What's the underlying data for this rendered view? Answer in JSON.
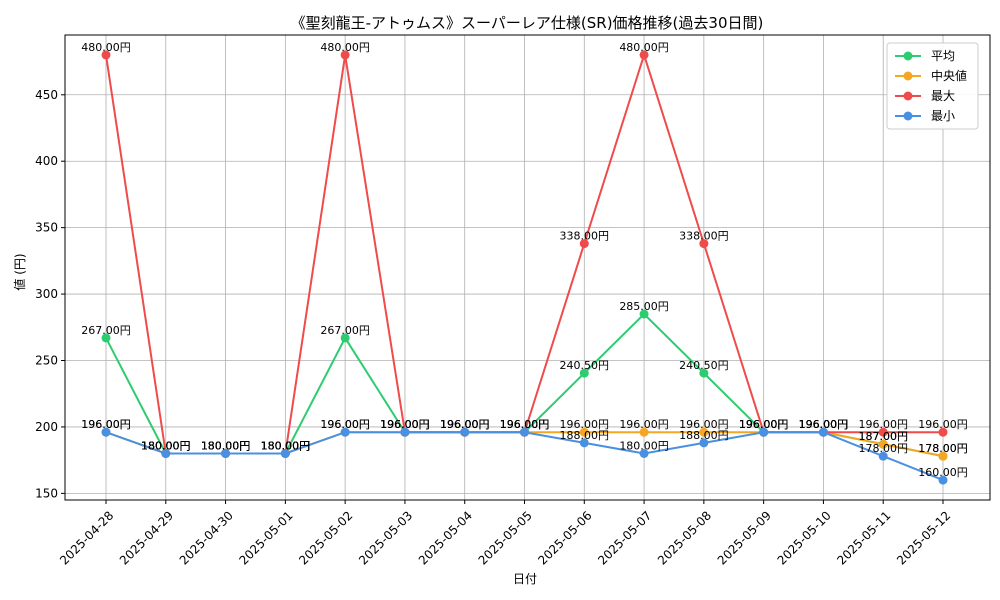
{
  "chart_data": {
    "type": "line",
    "title": "《聖刻龍王-アトゥムス》スーパーレア仕様(SR)価格推移(過去30日間)",
    "xlabel": "日付",
    "ylabel": "値 (円)",
    "ylim": [
      145,
      495
    ],
    "yticks": [
      150,
      200,
      250,
      300,
      350,
      400,
      450
    ],
    "grid": true,
    "legend_position": "top-right",
    "categories": [
      "2025-04-28",
      "2025-04-29",
      "2025-04-30",
      "2025-05-01",
      "2025-05-02",
      "2025-05-03",
      "2025-05-04",
      "2025-05-05",
      "2025-05-06",
      "2025-05-07",
      "2025-05-08",
      "2025-05-09",
      "2025-05-10",
      "2025-05-11",
      "2025-05-12"
    ],
    "series": [
      {
        "name": "平均",
        "color": "#2ecc71",
        "values": [
          267,
          180,
          180,
          180,
          267,
          196,
          196,
          196,
          240.5,
          285,
          240.5,
          196,
          196,
          187,
          178
        ]
      },
      {
        "name": "中央値",
        "color": "#f5a623",
        "values": [
          196,
          180,
          180,
          180,
          196,
          196,
          196,
          196,
          196,
          196,
          196,
          196,
          196,
          187,
          178
        ]
      },
      {
        "name": "最大",
        "color": "#ef4b4b",
        "values": [
          480,
          180,
          180,
          180,
          480,
          196,
          196,
          196,
          338,
          480,
          338,
          196,
          196,
          196,
          196
        ]
      },
      {
        "name": "最小",
        "color": "#4a90e2",
        "values": [
          196,
          180,
          180,
          180,
          196,
          196,
          196,
          196,
          188,
          180,
          188,
          196,
          196,
          178,
          160
        ]
      }
    ],
    "value_suffix": "円"
  }
}
